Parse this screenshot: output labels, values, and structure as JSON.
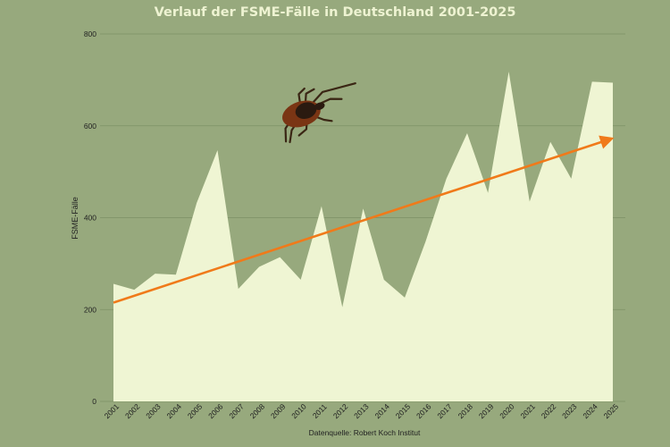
{
  "chart_data": {
    "type": "area",
    "title": "Verlauf der FSME-Fälle in Deutschland 2001-2025",
    "xlabel": "",
    "ylabel": "FSME-Fälle",
    "source": "Datenquelle: Robert Koch Institut",
    "categories": [
      "2001",
      "2002",
      "2003",
      "2004",
      "2005",
      "2006",
      "2007",
      "2008",
      "2009",
      "2010",
      "2011",
      "2012",
      "2013",
      "2014",
      "2015",
      "2016",
      "2017",
      "2018",
      "2019",
      "2020",
      "2021",
      "2022",
      "2023",
      "2024",
      "2025"
    ],
    "series": [
      {
        "name": "FSME-Fälle",
        "values": [
          256,
          243,
          278,
          276,
          432,
          547,
          245,
          293,
          314,
          265,
          425,
          205,
          420,
          265,
          226,
          348,
          485,
          584,
          454,
          718,
          435,
          565,
          485,
          696,
          694
        ]
      }
    ],
    "trend": {
      "type": "linear-arrow",
      "start": 215,
      "end": 573
    },
    "ylim": [
      0,
      800
    ],
    "yticks": [
      0,
      200,
      400,
      600,
      800
    ],
    "grid": true,
    "legend": "none",
    "decoration": "tick-image",
    "colors": {
      "background": "#97a97d",
      "area": "#eff5d3",
      "trend": "#f07a1a",
      "grid": "#7d9166",
      "title": "#eef3d2"
    }
  }
}
